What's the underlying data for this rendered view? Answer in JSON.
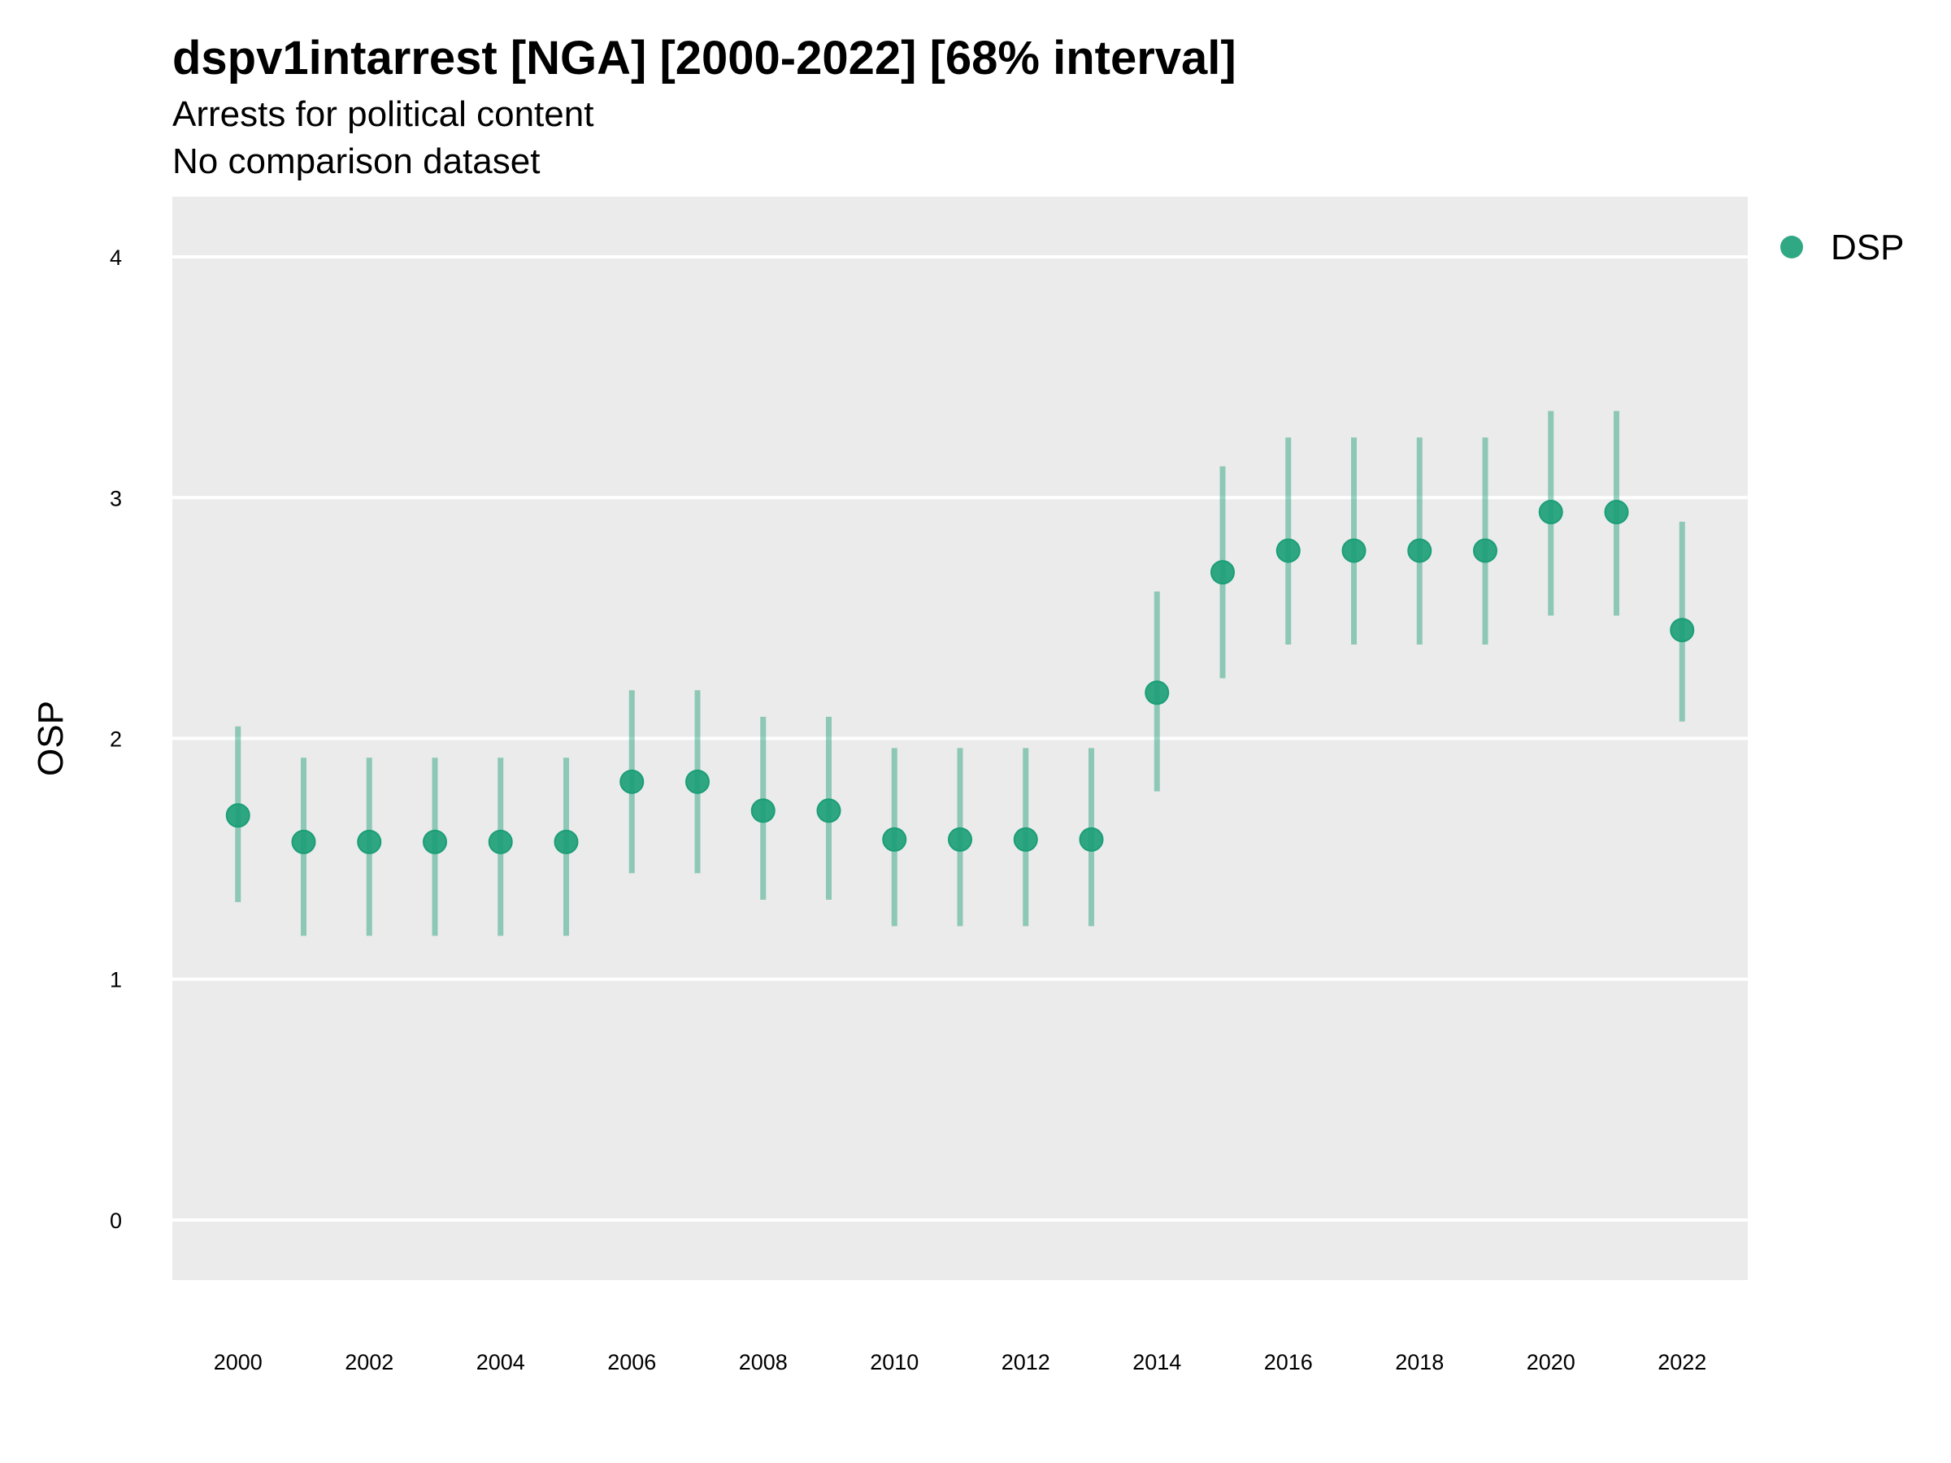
{
  "chart_data": {
    "type": "scatter",
    "title": "dspv1intarrest [NGA] [2000-2022] [68% interval]",
    "subtitle": "Arrests for political content",
    "subtitle2": "No comparison dataset",
    "xlabel": "",
    "ylabel": "OSP",
    "ylim": [
      -0.25,
      4.25
    ],
    "xlim": [
      1999,
      2023
    ],
    "x_ticks": [
      2000,
      2002,
      2004,
      2006,
      2008,
      2010,
      2012,
      2014,
      2016,
      2018,
      2020,
      2022
    ],
    "y_ticks": [
      0,
      1,
      2,
      3,
      4
    ],
    "grid": true,
    "legend_position": "right",
    "series": [
      {
        "name": "DSP",
        "color": "#1b9e77",
        "x": [
          2000,
          2001,
          2002,
          2003,
          2004,
          2005,
          2006,
          2007,
          2008,
          2009,
          2010,
          2011,
          2012,
          2013,
          2014,
          2015,
          2016,
          2017,
          2018,
          2019,
          2020,
          2021,
          2022
        ],
        "y": [
          1.68,
          1.57,
          1.57,
          1.57,
          1.57,
          1.57,
          1.82,
          1.82,
          1.7,
          1.7,
          1.58,
          1.58,
          1.58,
          1.58,
          2.19,
          2.69,
          2.78,
          2.78,
          2.78,
          2.78,
          2.94,
          2.94,
          2.45
        ],
        "lower": [
          1.32,
          1.18,
          1.18,
          1.18,
          1.18,
          1.18,
          1.44,
          1.44,
          1.33,
          1.33,
          1.22,
          1.22,
          1.22,
          1.22,
          1.78,
          2.25,
          2.39,
          2.39,
          2.39,
          2.39,
          2.51,
          2.51,
          2.07
        ],
        "upper": [
          2.05,
          1.92,
          1.92,
          1.92,
          1.92,
          1.92,
          2.2,
          2.2,
          2.09,
          2.09,
          1.96,
          1.96,
          1.96,
          1.96,
          2.61,
          3.13,
          3.25,
          3.25,
          3.25,
          3.25,
          3.36,
          3.36,
          2.9
        ]
      }
    ]
  }
}
